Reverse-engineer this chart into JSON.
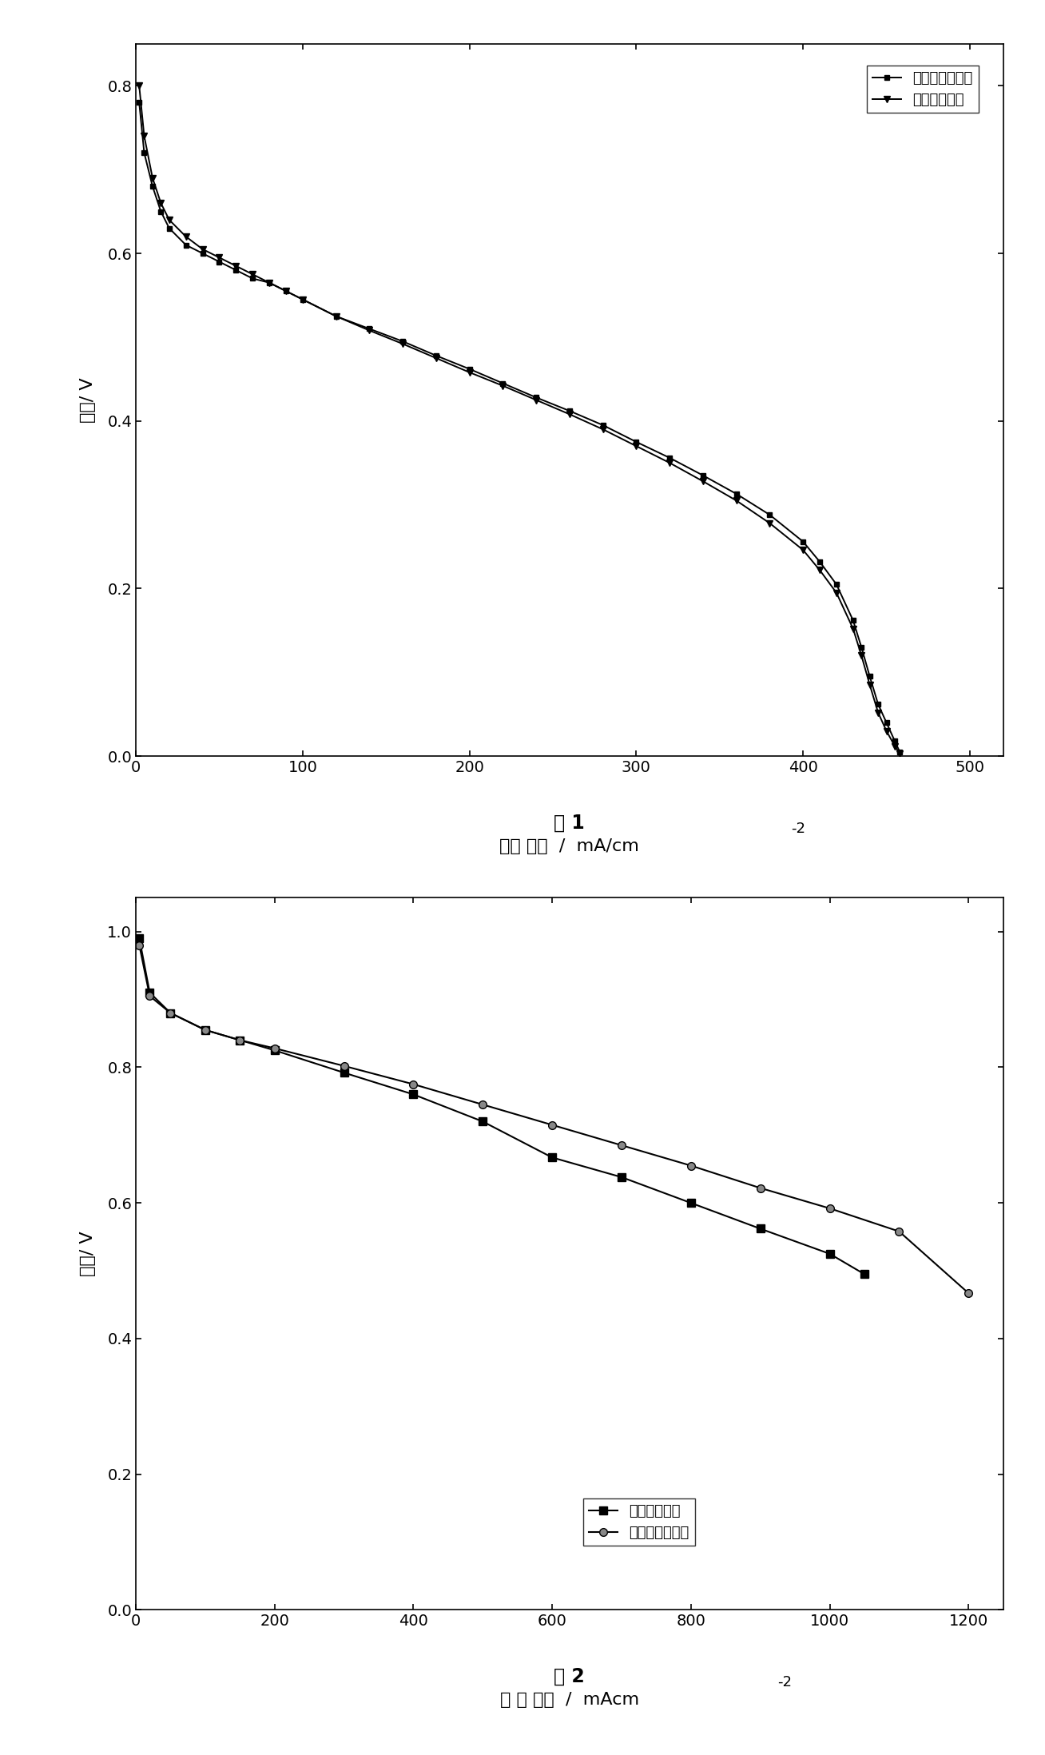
{
  "chart1": {
    "title": "图 1",
    "ylabel": "电压/ V",
    "xlim": [
      0,
      520
    ],
    "ylim": [
      0.0,
      0.85
    ],
    "yticks": [
      0.0,
      0.2,
      0.4,
      0.6,
      0.8
    ],
    "xticks": [
      0,
      100,
      200,
      300,
      400,
      500
    ],
    "legend1": "传统阴极扩散层",
    "legend2": "新阴极扩散层",
    "xlabel_main": "电流 密度  /  mA/cm",
    "xlabel_sup": "-2",
    "series1_x": [
      2,
      5,
      10,
      15,
      20,
      30,
      40,
      50,
      60,
      70,
      80,
      90,
      100,
      120,
      140,
      160,
      180,
      200,
      220,
      240,
      260,
      280,
      300,
      320,
      340,
      360,
      380,
      400,
      410,
      420,
      430,
      435,
      440,
      445,
      450,
      455,
      458
    ],
    "series1_y": [
      0.78,
      0.72,
      0.68,
      0.65,
      0.63,
      0.61,
      0.6,
      0.59,
      0.58,
      0.57,
      0.565,
      0.555,
      0.545,
      0.525,
      0.51,
      0.495,
      0.478,
      0.462,
      0.445,
      0.428,
      0.412,
      0.395,
      0.375,
      0.356,
      0.335,
      0.313,
      0.288,
      0.256,
      0.232,
      0.205,
      0.162,
      0.13,
      0.095,
      0.062,
      0.04,
      0.018,
      0.005
    ],
    "series2_x": [
      2,
      5,
      10,
      15,
      20,
      30,
      40,
      50,
      60,
      70,
      80,
      90,
      100,
      120,
      140,
      160,
      180,
      200,
      220,
      240,
      260,
      280,
      300,
      320,
      340,
      360,
      380,
      400,
      410,
      420,
      430,
      435,
      440,
      445,
      450,
      455,
      458
    ],
    "series2_y": [
      0.8,
      0.74,
      0.69,
      0.66,
      0.64,
      0.62,
      0.605,
      0.595,
      0.585,
      0.575,
      0.565,
      0.555,
      0.545,
      0.525,
      0.508,
      0.492,
      0.475,
      0.458,
      0.442,
      0.425,
      0.408,
      0.39,
      0.37,
      0.35,
      0.328,
      0.305,
      0.278,
      0.246,
      0.222,
      0.195,
      0.152,
      0.12,
      0.085,
      0.052,
      0.03,
      0.012,
      0.003
    ]
  },
  "chart2": {
    "title": "图 2",
    "ylabel": "电压/ V",
    "xlim": [
      0,
      1250
    ],
    "ylim": [
      0.0,
      1.05
    ],
    "yticks": [
      0.0,
      0.2,
      0.4,
      0.6,
      0.8,
      1.0
    ],
    "xticks": [
      0,
      200,
      400,
      600,
      800,
      1000,
      1200
    ],
    "legend1": "新电极扩散层",
    "legend2": "传统电极扩散层",
    "xlabel_main": "电 流 密度  /  mAcm",
    "xlabel_sup": "-2",
    "series1_x": [
      5,
      20,
      50,
      100,
      150,
      200,
      300,
      400,
      500,
      600,
      700,
      800,
      900,
      1000,
      1050
    ],
    "series1_y": [
      0.99,
      0.91,
      0.88,
      0.855,
      0.84,
      0.825,
      0.792,
      0.76,
      0.72,
      0.667,
      0.638,
      0.6,
      0.562,
      0.525,
      0.495
    ],
    "series2_x": [
      5,
      20,
      50,
      100,
      150,
      200,
      300,
      400,
      500,
      600,
      700,
      800,
      900,
      1000,
      1100,
      1200
    ],
    "series2_y": [
      0.98,
      0.905,
      0.88,
      0.855,
      0.84,
      0.828,
      0.802,
      0.775,
      0.745,
      0.715,
      0.685,
      0.655,
      0.622,
      0.592,
      0.558,
      0.467
    ]
  },
  "background_color": "#ffffff",
  "line_color": "#000000",
  "fontsize_label": 16,
  "fontsize_tick": 14,
  "fontsize_title": 17,
  "fontsize_legend": 13
}
